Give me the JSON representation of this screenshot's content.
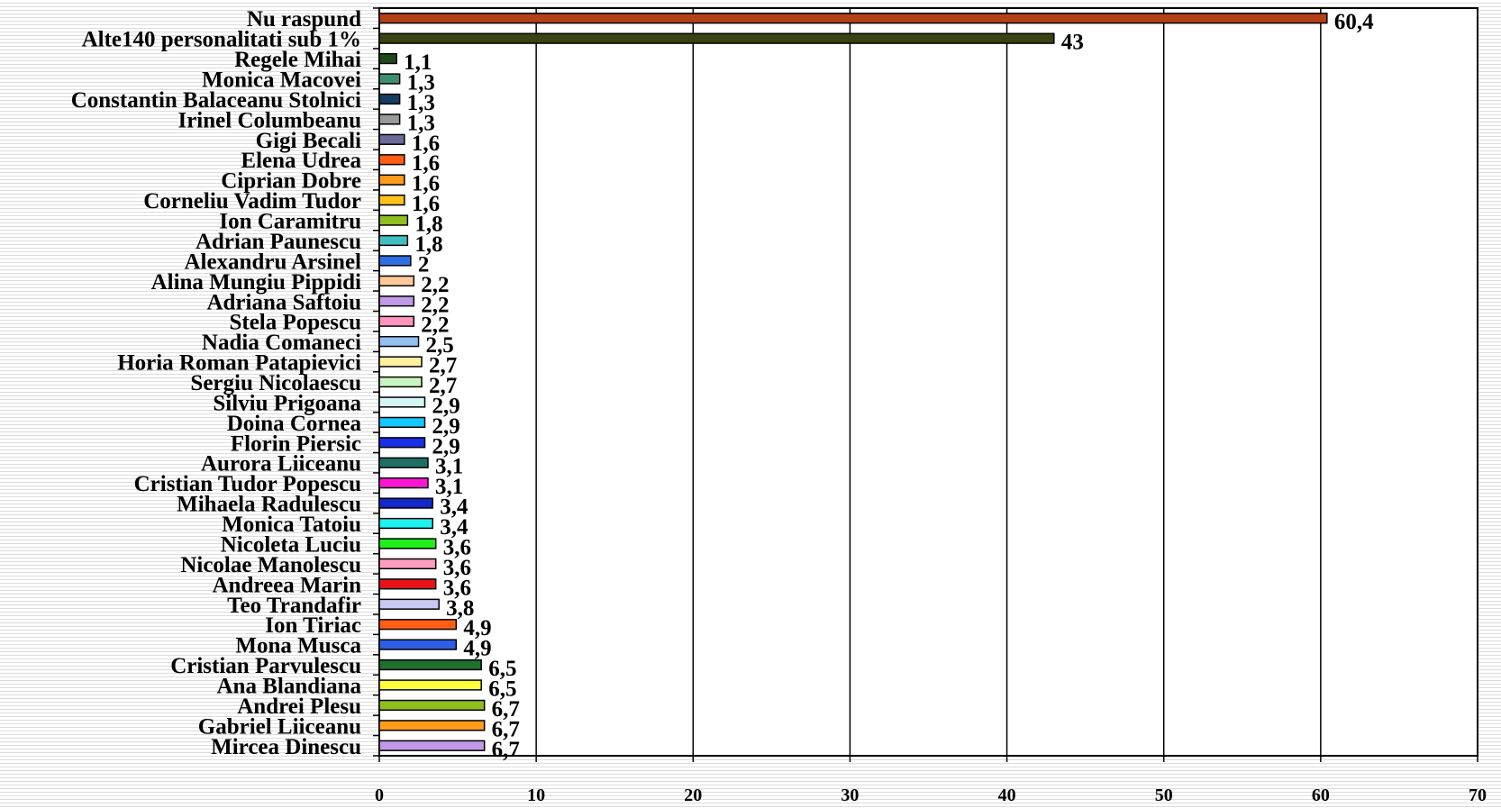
{
  "chart_data": {
    "type": "bar",
    "orientation": "horizontal",
    "categories": [
      "Nu raspund",
      "Alte140 personalitati sub 1%",
      "Regele Mihai",
      "Monica Macovei",
      "Constantin Balaceanu Stolnici",
      "Irinel Columbeanu",
      "Gigi Becali",
      "Elena Udrea",
      "Ciprian Dobre",
      "Corneliu Vadim Tudor",
      "Ion Caramitru",
      "Adrian Paunescu",
      "Alexandru Arsinel",
      "Alina Mungiu Pippidi",
      "Adriana Saftoiu",
      "Stela Popescu",
      "Nadia Comaneci",
      "Horia Roman Patapievici",
      "Sergiu Nicolaescu",
      "Silviu Prigoana",
      "Doina Cornea",
      "Florin Piersic",
      "Aurora Liiceanu",
      "Cristian Tudor Popescu",
      "Mihaela Radulescu",
      "Monica Tatoiu",
      "Nicoleta Luciu",
      "Nicolae Manolescu",
      "Andreea Marin",
      "Teo Trandafir",
      "Ion Tiriac",
      "Mona Musca",
      "Cristian Parvulescu",
      "Ana Blandiana",
      "Andrei Plesu",
      "Gabriel Liiceanu",
      "Mircea Dinescu"
    ],
    "values": [
      60.4,
      43,
      1.1,
      1.3,
      1.3,
      1.3,
      1.6,
      1.6,
      1.6,
      1.6,
      1.8,
      1.8,
      2,
      2.2,
      2.2,
      2.2,
      2.5,
      2.7,
      2.7,
      2.9,
      2.9,
      2.9,
      3.1,
      3.1,
      3.4,
      3.4,
      3.6,
      3.6,
      3.6,
      3.8,
      4.9,
      4.9,
      6.5,
      6.5,
      6.7,
      6.7,
      6.7
    ],
    "value_labels": [
      "60,4",
      "43",
      "1,1",
      "1,3",
      "1,3",
      "1,3",
      "1,6",
      "1,6",
      "1,6",
      "1,6",
      "1,8",
      "1,8",
      "2",
      "2,2",
      "2,2",
      "2,2",
      "2,5",
      "2,7",
      "2,7",
      "2,9",
      "2,9",
      "2,9",
      "3,1",
      "3,1",
      "3,4",
      "3,4",
      "3,6",
      "3,6",
      "3,6",
      "3,8",
      "4,9",
      "4,9",
      "6,5",
      "6,5",
      "6,7",
      "6,7",
      "6,7"
    ],
    "bar_colors": [
      "#b5401a",
      "#3a4214",
      "#1e4a18",
      "#3f8f6e",
      "#173b66",
      "#999999",
      "#6b6b99",
      "#ff5e14",
      "#ff9c1a",
      "#ffc21a",
      "#8fbf1f",
      "#3fbfbf",
      "#2f6fe6",
      "#ffc99a",
      "#c09ae6",
      "#ff94c0",
      "#94c0f0",
      "#fff0a0",
      "#c9f5c0",
      "#d4f5f5",
      "#14c9ff",
      "#1a2fe6",
      "#1f6f66",
      "#ff14d4",
      "#1428c9",
      "#1ff0f0",
      "#1ff01a",
      "#ff9cc0",
      "#e6141a",
      "#c9c9f5",
      "#ff5e14",
      "#2f5ee6",
      "#1f6f2f",
      "#ffff3a",
      "#8fbf1f",
      "#ff9c1a",
      "#c09ae6"
    ],
    "xlim": [
      0,
      70
    ],
    "xticks": [
      "0",
      "10",
      "20",
      "30",
      "40",
      "50",
      "60",
      "70"
    ],
    "gridlines": "vertical",
    "title": "",
    "xlabel": "",
    "ylabel": ""
  }
}
